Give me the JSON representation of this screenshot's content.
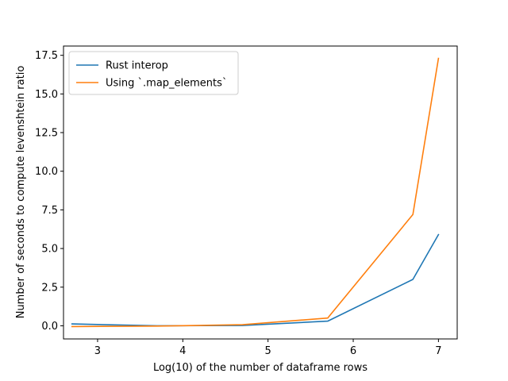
{
  "chart_data": {
    "type": "line",
    "xlabel": "Log(10) of the number of dataframe rows",
    "ylabel": "Number of seconds to compute levenshtein ratio",
    "xlim": [
      2.6,
      7.22
    ],
    "ylim": [
      -0.85,
      18.1
    ],
    "xticks": [
      3,
      4,
      5,
      6,
      7
    ],
    "xtick_labels": [
      "3",
      "4",
      "5",
      "6",
      "7"
    ],
    "yticks": [
      0,
      2.5,
      5,
      7.5,
      10,
      12.5,
      15,
      17.5
    ],
    "ytick_labels": [
      "0.0",
      "2.5",
      "5.0",
      "7.5",
      "10.0",
      "12.5",
      "15.0",
      "17.5"
    ],
    "grid": false,
    "legend_position": "top-left",
    "x": [
      2.7,
      3.7,
      4.7,
      5.7,
      6.7,
      7.0
    ],
    "series": [
      {
        "name": "Rust interop",
        "color": "#1f77b4",
        "values": [
          0.12,
          0.0,
          0.02,
          0.3,
          3.0,
          5.9
        ]
      },
      {
        "name": "Using `.map_elements`",
        "color": "#ff7f0e",
        "values": [
          -0.05,
          -0.02,
          0.07,
          0.5,
          7.2,
          17.3
        ]
      }
    ]
  }
}
